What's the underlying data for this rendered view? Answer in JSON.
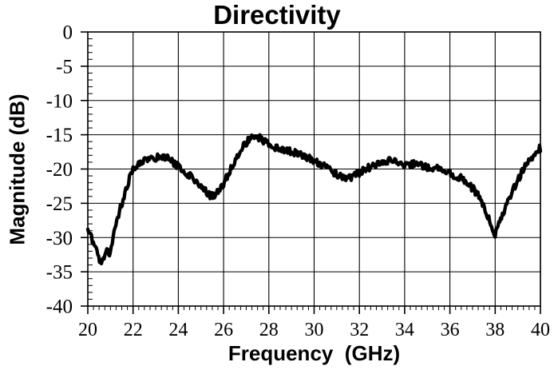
{
  "chart_data": {
    "type": "line",
    "title": "Directivity",
    "xlabel": "Frequency  (GHz)",
    "ylabel": "Magnitude (dB)",
    "xlim": [
      20,
      40
    ],
    "ylim": [
      -40,
      0
    ],
    "x_major_ticks": [
      20,
      22,
      24,
      26,
      28,
      30,
      32,
      34,
      36,
      38,
      40
    ],
    "x_minor_step": 0.25,
    "y_major_ticks": [
      0,
      -5,
      -10,
      -15,
      -20,
      -25,
      -30,
      -35,
      -40
    ],
    "y_minor_step": 1,
    "grid": true,
    "legend_position": "none",
    "line_color": "#000000",
    "background_color": "#ffffff",
    "noise_amplitude_db": 0.55,
    "series": [
      {
        "name": "Directivity",
        "x_start": 20.0,
        "x_step": 0.2,
        "values": [
          -28.8,
          -30.4,
          -31.9,
          -34.2,
          -31.9,
          -32.6,
          -28.4,
          -26.1,
          -24.2,
          -21.8,
          -20.0,
          -19.2,
          -18.8,
          -18.6,
          -18.4,
          -18.3,
          -18.1,
          -18.2,
          -18.6,
          -19.1,
          -19.7,
          -20.1,
          -20.7,
          -21.2,
          -21.8,
          -22.5,
          -23.2,
          -23.9,
          -23.7,
          -23.0,
          -22.1,
          -20.8,
          -19.4,
          -18.1,
          -17.0,
          -16.2,
          -15.5,
          -15.1,
          -15.4,
          -16.0,
          -16.5,
          -16.7,
          -16.9,
          -17.0,
          -17.2,
          -17.5,
          -17.7,
          -17.9,
          -18.2,
          -18.5,
          -18.8,
          -19.1,
          -19.5,
          -19.9,
          -20.3,
          -20.7,
          -21.2,
          -21.5,
          -21.2,
          -20.8,
          -20.5,
          -20.1,
          -19.8,
          -19.5,
          -19.2,
          -19.0,
          -18.9,
          -18.8,
          -19.0,
          -19.2,
          -19.3,
          -19.2,
          -19.3,
          -19.5,
          -19.6,
          -19.7,
          -19.8,
          -19.9,
          -20.1,
          -20.3,
          -20.6,
          -20.9,
          -21.2,
          -21.6,
          -22.1,
          -22.8,
          -23.7,
          -24.8,
          -26.2,
          -27.7,
          -29.7,
          -27.6,
          -26.2,
          -24.6,
          -23.0,
          -21.6,
          -20.4,
          -19.3,
          -18.4,
          -17.6,
          -16.9
        ]
      }
    ]
  }
}
